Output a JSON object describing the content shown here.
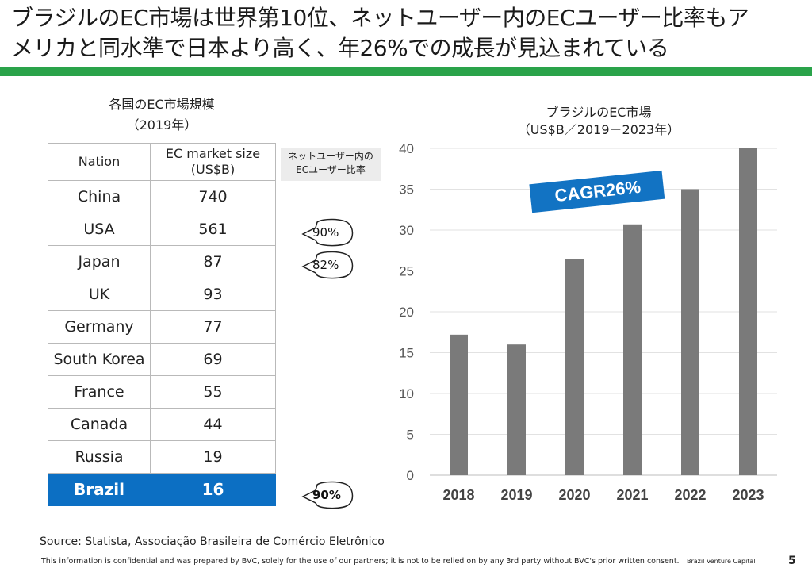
{
  "headline": {
    "line1": "ブラジルのEC市場は世界第10位、ネットユーザー内のECユーザー比率もア",
    "line2": "メリカと同水準で日本より高く、年26%での成長が見込まれている"
  },
  "table": {
    "title": "各国のEC市場規模",
    "subtitle": "（2019年）",
    "headers": {
      "nation": "Nation",
      "size_line1": "EC market size",
      "size_line2": "(US$B)"
    },
    "rows": [
      {
        "nation": "China",
        "size": "740"
      },
      {
        "nation": "USA",
        "size": "561"
      },
      {
        "nation": "Japan",
        "size": "87"
      },
      {
        "nation": "UK",
        "size": "93"
      },
      {
        "nation": "Germany",
        "size": "77"
      },
      {
        "nation": "South Korea",
        "size": "69"
      },
      {
        "nation": "France",
        "size": "55"
      },
      {
        "nation": "Canada",
        "size": "44"
      },
      {
        "nation": "Russia",
        "size": "19"
      },
      {
        "nation": "Brazil",
        "size": "16"
      }
    ],
    "highlight_color": "#0c6fc3"
  },
  "share": {
    "header_line1": "ネットユーザー内の",
    "header_line2": "ECユーザー比率",
    "usa": "90%",
    "japan": "82%",
    "brazil": "90%"
  },
  "chart": {
    "title_line1": "ブラジルのEC市場",
    "title_line2": "（US$B／2019－2023年）",
    "cagr_label": "CAGR26%"
  },
  "chart_data": {
    "type": "bar",
    "categories": [
      "2018",
      "2019",
      "2020",
      "2021",
      "2022",
      "2023"
    ],
    "values": [
      17.2,
      16.0,
      26.5,
      30.7,
      35.0,
      40.0
    ],
    "ylim": [
      0,
      40
    ],
    "yticks": [
      0,
      5,
      10,
      15,
      20,
      25,
      30,
      35,
      40
    ],
    "grid": true,
    "bar_color": "#7a7a7a",
    "annotation_color": "#1273c3"
  },
  "footer": {
    "source": "Source: Statista, Associação Brasileira de Comércio Eletrônico",
    "note": "This information is confidential and was prepared by BVC, solely for the use of our partners; it is not to be relied on by any 3rd party without BVC's prior written consent.",
    "brand": "Brazil Venture Capital",
    "page": "5"
  }
}
